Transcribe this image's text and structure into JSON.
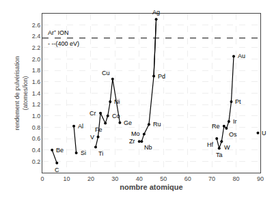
{
  "chart_data": {
    "type": "line",
    "x_label": "nombre atomique",
    "y_label": "rendement de pulvérisation\n(atomes/ion)",
    "xlim": [
      0,
      90
    ],
    "ylim": [
      0,
      2.8
    ],
    "xticks": [
      0,
      10,
      20,
      30,
      40,
      50,
      60,
      70,
      80,
      90
    ],
    "yticks": [
      0.2,
      0.4,
      0.6,
      0.8,
      {
        "value": 1,
        "label": "1.0"
      },
      1.2,
      1.4,
      1.6,
      1.8,
      {
        "value": 2,
        "label": "2.0"
      },
      2.2,
      2.4,
      2.6
    ],
    "grid": true,
    "color": "#000000",
    "series": [
      {
        "x": [
          4,
          6
        ],
        "values": [
          0.4,
          0.17
        ]
      },
      {
        "x": [
          13,
          14
        ],
        "values": [
          0.82,
          0.35
        ]
      },
      {
        "x": [
          22,
          23,
          24,
          26,
          27,
          28,
          29
        ],
        "values": [
          0.45,
          0.63,
          1.05,
          0.87,
          1.0,
          1.25,
          1.65
        ]
      },
      {
        "x": [
          29,
          32
        ],
        "values": [
          1.65,
          0.88
        ]
      },
      {
        "x": [
          40,
          41,
          42,
          44,
          46,
          47
        ],
        "values": [
          0.55,
          0.55,
          0.68,
          0.85,
          1.7,
          2.7
        ]
      },
      {
        "x": [
          47,
          46
        ],
        "values": [
          2.7,
          1.7
        ]
      },
      {
        "x": [
          72,
          73,
          74,
          75,
          76,
          77,
          78,
          79
        ],
        "values": [
          0.6,
          0.43,
          0.55,
          0.82,
          0.78,
          0.9,
          1.25,
          2.05
        ]
      }
    ],
    "points": [
      {
        "x": 4,
        "y": 0.4,
        "label": "Be"
      },
      {
        "x": 6,
        "y": 0.17,
        "label": "C"
      },
      {
        "x": 13,
        "y": 0.82,
        "label": "Al"
      },
      {
        "x": 14,
        "y": 0.35,
        "label": "Si"
      },
      {
        "x": 22,
        "y": 0.45,
        "label": "Ti"
      },
      {
        "x": 23,
        "y": 0.63,
        "label": "V"
      },
      {
        "x": 24,
        "y": 1.05,
        "label": "Cr"
      },
      {
        "x": 26,
        "y": 0.87,
        "label": "Fe"
      },
      {
        "x": 27,
        "y": 1.0,
        "label": "Co"
      },
      {
        "x": 28,
        "y": 1.25,
        "label": "Ni"
      },
      {
        "x": 29,
        "y": 1.65,
        "label": "Cu"
      },
      {
        "x": 32,
        "y": 0.88,
        "label": "Ge"
      },
      {
        "x": 40,
        "y": 0.55,
        "label": "Zr"
      },
      {
        "x": 41,
        "y": 0.55,
        "label": "Nb"
      },
      {
        "x": 42,
        "y": 0.68,
        "label": "Mo"
      },
      {
        "x": 44,
        "y": 0.85,
        "label": "Ru"
      },
      {
        "x": 46,
        "y": 1.7,
        "label": "Pd"
      },
      {
        "x": 47,
        "y": 2.7,
        "label": "Ag"
      },
      {
        "x": 72,
        "y": 0.6,
        "label": "Hf"
      },
      {
        "x": 73,
        "y": 0.43,
        "label": "Ta"
      },
      {
        "x": 74,
        "y": 0.55,
        "label": "W"
      },
      {
        "x": 75,
        "y": 0.82,
        "label": "Re"
      },
      {
        "x": 76,
        "y": 0.78,
        "label": "Os"
      },
      {
        "x": 77,
        "y": 0.9,
        "label": "Ir"
      },
      {
        "x": 78,
        "y": 1.25,
        "label": "Pt"
      },
      {
        "x": 79,
        "y": 2.05,
        "label": "Au"
      },
      {
        "x": 89,
        "y": 0.7,
        "label": "U"
      }
    ],
    "reference_line": {
      "y": 2.37,
      "color": "#000000",
      "line_style": "dashed"
    },
    "annotations": [
      "Ar⁺ ION",
      "- --(400 eV)"
    ]
  }
}
